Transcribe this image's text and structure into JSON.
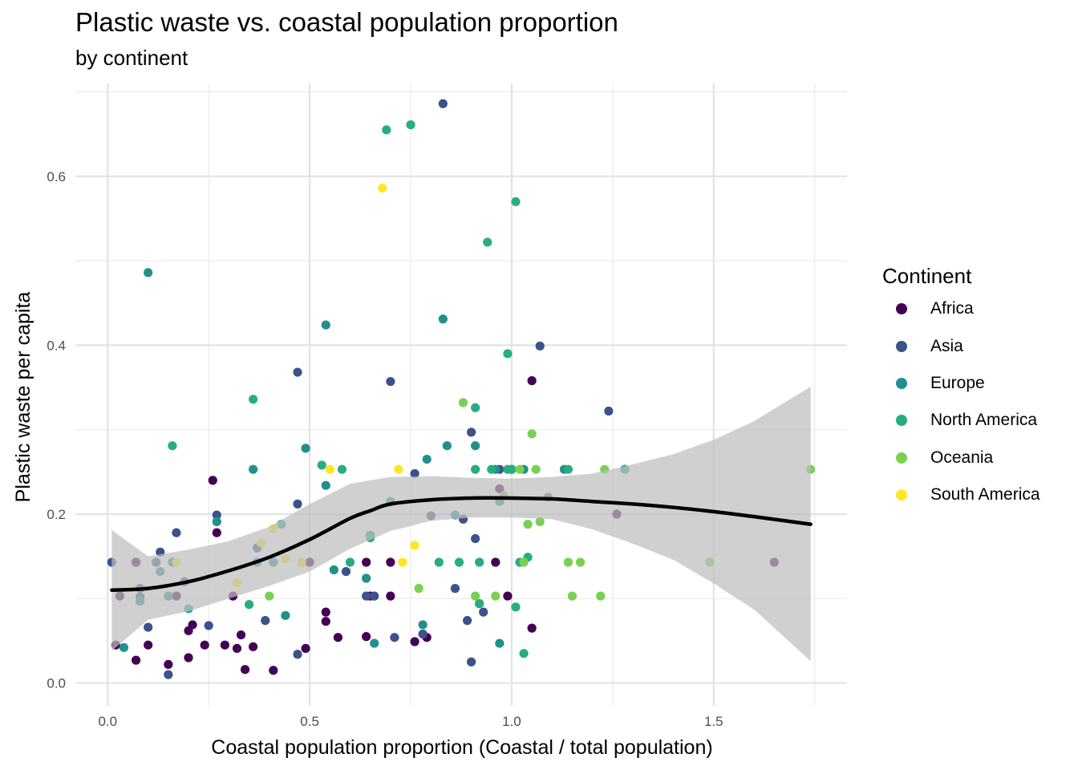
{
  "chart_data": {
    "type": "scatter",
    "title": "Plastic waste vs. coastal population proportion",
    "subtitle": "by continent",
    "xlabel": "Coastal population proportion (Coastal / total population)",
    "ylabel": "Plastic waste per capita",
    "xlim": [
      -0.08,
      1.83
    ],
    "ylim": [
      -0.027,
      0.71
    ],
    "x_ticks": [
      0.0,
      0.5,
      1.0,
      1.5
    ],
    "x_tick_labels": [
      "0.0",
      "0.5",
      "1.0",
      "1.5"
    ],
    "y_ticks": [
      0.0,
      0.2,
      0.4,
      0.6
    ],
    "y_tick_labels": [
      "0.0",
      "0.2",
      "0.4",
      "0.6"
    ],
    "grid": true,
    "legend_title": "Continent",
    "legend_position": "right",
    "series": [
      {
        "name": "Africa",
        "color": "#440154",
        "points": [
          [
            0.02,
            0.045
          ],
          [
            0.03,
            0.103
          ],
          [
            0.07,
            0.027
          ],
          [
            0.1,
            0.045
          ],
          [
            0.15,
            0.022
          ],
          [
            0.17,
            0.103
          ],
          [
            0.2,
            0.03
          ],
          [
            0.2,
            0.062
          ],
          [
            0.21,
            0.069
          ],
          [
            0.24,
            0.045
          ],
          [
            0.26,
            0.24
          ],
          [
            0.27,
            0.178
          ],
          [
            0.29,
            0.045
          ],
          [
            0.31,
            0.103
          ],
          [
            0.32,
            0.041
          ],
          [
            0.33,
            0.057
          ],
          [
            0.34,
            0.016
          ],
          [
            0.36,
            0.043
          ],
          [
            0.41,
            0.015
          ],
          [
            0.49,
            0.041
          ],
          [
            0.54,
            0.084
          ],
          [
            0.54,
            0.073
          ],
          [
            0.57,
            0.054
          ],
          [
            0.64,
            0.055
          ],
          [
            0.64,
            0.143
          ],
          [
            0.65,
            0.103
          ],
          [
            0.7,
            0.103
          ],
          [
            0.7,
            0.143
          ],
          [
            0.76,
            0.049
          ],
          [
            0.79,
            0.054
          ],
          [
            0.96,
            0.143
          ],
          [
            0.97,
            0.23
          ],
          [
            0.99,
            0.103
          ],
          [
            1.05,
            0.065
          ],
          [
            1.05,
            0.358
          ],
          [
            1.26,
            0.2
          ],
          [
            1.65,
            0.143
          ],
          [
            0.5,
            0.143
          ],
          [
            0.07,
            0.143
          ]
        ]
      },
      {
        "name": "Asia",
        "color": "#3b528b",
        "points": [
          [
            0.01,
            0.143
          ],
          [
            0.08,
            0.112
          ],
          [
            0.08,
            0.102
          ],
          [
            0.1,
            0.066
          ],
          [
            0.12,
            0.143
          ],
          [
            0.13,
            0.155
          ],
          [
            0.15,
            0.01
          ],
          [
            0.17,
            0.178
          ],
          [
            0.19,
            0.12
          ],
          [
            0.25,
            0.068
          ],
          [
            0.27,
            0.199
          ],
          [
            0.37,
            0.16
          ],
          [
            0.39,
            0.074
          ],
          [
            0.47,
            0.212
          ],
          [
            0.47,
            0.368
          ],
          [
            0.47,
            0.034
          ],
          [
            0.59,
            0.132
          ],
          [
            0.64,
            0.103
          ],
          [
            0.7,
            0.357
          ],
          [
            0.71,
            0.054
          ],
          [
            0.76,
            0.248
          ],
          [
            0.78,
            0.058
          ],
          [
            0.8,
            0.198
          ],
          [
            0.83,
            0.686
          ],
          [
            0.86,
            0.112
          ],
          [
            0.88,
            0.194
          ],
          [
            0.89,
            0.074
          ],
          [
            0.9,
            0.297
          ],
          [
            0.9,
            0.025
          ],
          [
            0.91,
            0.171
          ],
          [
            0.92,
            0.094
          ],
          [
            0.93,
            0.084
          ],
          [
            0.97,
            0.253
          ],
          [
            1.0,
            0.253
          ],
          [
            1.07,
            0.399
          ],
          [
            1.24,
            0.322
          ],
          [
            0.66,
            0.103
          ]
        ]
      },
      {
        "name": "Europe",
        "color": "#21908d",
        "points": [
          [
            0.04,
            0.042
          ],
          [
            0.1,
            0.486
          ],
          [
            0.13,
            0.132
          ],
          [
            0.15,
            0.103
          ],
          [
            0.16,
            0.143
          ],
          [
            0.27,
            0.191
          ],
          [
            0.36,
            0.253
          ],
          [
            0.41,
            0.143
          ],
          [
            0.44,
            0.08
          ],
          [
            0.49,
            0.278
          ],
          [
            0.54,
            0.424
          ],
          [
            0.54,
            0.234
          ],
          [
            0.56,
            0.134
          ],
          [
            0.64,
            0.124
          ],
          [
            0.65,
            0.175
          ],
          [
            0.66,
            0.047
          ],
          [
            0.7,
            0.215
          ],
          [
            0.78,
            0.069
          ],
          [
            0.79,
            0.265
          ],
          [
            0.83,
            0.431
          ],
          [
            0.84,
            0.281
          ],
          [
            0.86,
            0.199
          ],
          [
            0.91,
            0.281
          ],
          [
            0.96,
            0.253
          ],
          [
            0.97,
            0.215
          ],
          [
            0.97,
            0.047
          ],
          [
            1.03,
            0.253
          ],
          [
            1.09,
            0.22
          ],
          [
            1.13,
            0.253
          ],
          [
            1.28,
            0.253
          ],
          [
            0.08,
            0.097
          ],
          [
            0.37,
            0.143
          ]
        ]
      },
      {
        "name": "North America",
        "color": "#27ad81",
        "points": [
          [
            0.16,
            0.281
          ],
          [
            0.2,
            0.088
          ],
          [
            0.35,
            0.093
          ],
          [
            0.36,
            0.336
          ],
          [
            0.43,
            0.188
          ],
          [
            0.53,
            0.258
          ],
          [
            0.58,
            0.253
          ],
          [
            0.6,
            0.143
          ],
          [
            0.65,
            0.172
          ],
          [
            0.69,
            0.655
          ],
          [
            0.75,
            0.661
          ],
          [
            0.82,
            0.143
          ],
          [
            0.87,
            0.143
          ],
          [
            0.91,
            0.326
          ],
          [
            0.91,
            0.253
          ],
          [
            0.92,
            0.143
          ],
          [
            0.92,
            0.094
          ],
          [
            0.94,
            0.522
          ],
          [
            0.95,
            0.253
          ],
          [
            0.99,
            0.39
          ],
          [
            0.99,
            0.253
          ],
          [
            1.0,
            0.253
          ],
          [
            1.01,
            0.09
          ],
          [
            1.01,
            0.57
          ],
          [
            1.02,
            0.143
          ],
          [
            1.03,
            0.035
          ],
          [
            1.04,
            0.149
          ],
          [
            1.14,
            0.253
          ],
          [
            1.28,
            0.253
          ]
        ]
      },
      {
        "name": "Oceania",
        "color": "#7ad151",
        "points": [
          [
            0.4,
            0.103
          ],
          [
            0.77,
            0.112
          ],
          [
            0.88,
            0.332
          ],
          [
            0.91,
            0.103
          ],
          [
            0.96,
            0.103
          ],
          [
            0.98,
            0.222
          ],
          [
            1.02,
            0.253
          ],
          [
            1.03,
            0.143
          ],
          [
            1.04,
            0.188
          ],
          [
            1.05,
            0.295
          ],
          [
            1.06,
            0.253
          ],
          [
            1.07,
            0.191
          ],
          [
            1.14,
            0.143
          ],
          [
            1.15,
            0.103
          ],
          [
            1.17,
            0.143
          ],
          [
            1.22,
            0.103
          ],
          [
            1.23,
            0.253
          ],
          [
            1.49,
            0.143
          ],
          [
            1.74,
            0.253
          ]
        ]
      },
      {
        "name": "South America",
        "color": "#fde725",
        "points": [
          [
            0.32,
            0.119
          ],
          [
            0.38,
            0.166
          ],
          [
            0.41,
            0.183
          ],
          [
            0.44,
            0.147
          ],
          [
            0.48,
            0.143
          ],
          [
            0.55,
            0.253
          ],
          [
            0.68,
            0.586
          ],
          [
            0.72,
            0.253
          ],
          [
            0.73,
            0.143
          ],
          [
            0.76,
            0.163
          ],
          [
            0.17,
            0.143
          ]
        ]
      }
    ],
    "smooth": {
      "color": "#000000",
      "band_color": "#bebebe",
      "line": [
        [
          0.01,
          0.11
        ],
        [
          0.1,
          0.112
        ],
        [
          0.2,
          0.12
        ],
        [
          0.3,
          0.133
        ],
        [
          0.4,
          0.149
        ],
        [
          0.5,
          0.17
        ],
        [
          0.6,
          0.195
        ],
        [
          0.65,
          0.204
        ],
        [
          0.7,
          0.212
        ],
        [
          0.8,
          0.217
        ],
        [
          0.9,
          0.219
        ],
        [
          1.0,
          0.219
        ],
        [
          1.1,
          0.218
        ],
        [
          1.2,
          0.215
        ],
        [
          1.3,
          0.212
        ],
        [
          1.4,
          0.208
        ],
        [
          1.5,
          0.203
        ],
        [
          1.6,
          0.197
        ],
        [
          1.74,
          0.188
        ]
      ],
      "upper": [
        [
          0.01,
          0.181
        ],
        [
          0.1,
          0.15
        ],
        [
          0.2,
          0.158
        ],
        [
          0.3,
          0.168
        ],
        [
          0.4,
          0.185
        ],
        [
          0.5,
          0.212
        ],
        [
          0.6,
          0.236
        ],
        [
          0.7,
          0.244
        ],
        [
          0.8,
          0.245
        ],
        [
          0.9,
          0.243
        ],
        [
          1.0,
          0.242
        ],
        [
          1.1,
          0.244
        ],
        [
          1.2,
          0.248
        ],
        [
          1.3,
          0.259
        ],
        [
          1.4,
          0.271
        ],
        [
          1.5,
          0.288
        ],
        [
          1.6,
          0.31
        ],
        [
          1.74,
          0.351
        ]
      ],
      "lower": [
        [
          0.01,
          0.038
        ],
        [
          0.1,
          0.075
        ],
        [
          0.2,
          0.085
        ],
        [
          0.3,
          0.1
        ],
        [
          0.4,
          0.115
        ],
        [
          0.5,
          0.132
        ],
        [
          0.6,
          0.159
        ],
        [
          0.7,
          0.18
        ],
        [
          0.8,
          0.192
        ],
        [
          0.9,
          0.196
        ],
        [
          1.0,
          0.196
        ],
        [
          1.1,
          0.194
        ],
        [
          1.2,
          0.182
        ],
        [
          1.3,
          0.165
        ],
        [
          1.4,
          0.146
        ],
        [
          1.5,
          0.118
        ],
        [
          1.6,
          0.087
        ],
        [
          1.74,
          0.026
        ]
      ]
    }
  }
}
